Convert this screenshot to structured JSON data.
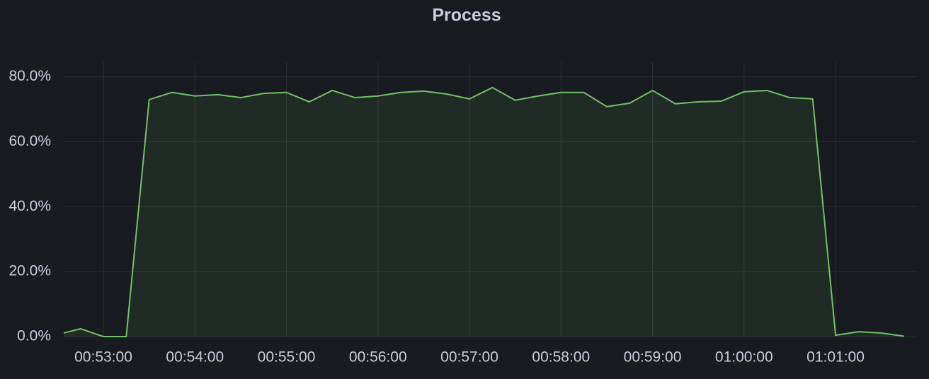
{
  "chart_data": {
    "type": "line",
    "title": "Process",
    "x": [
      "00:52:34",
      "00:52:45",
      "00:53:00",
      "00:53:15",
      "00:53:30",
      "00:53:45",
      "00:54:00",
      "00:54:15",
      "00:54:30",
      "00:54:45",
      "00:55:00",
      "00:55:15",
      "00:55:30",
      "00:55:45",
      "00:56:00",
      "00:56:15",
      "00:56:30",
      "00:56:45",
      "00:57:00",
      "00:57:15",
      "00:57:30",
      "00:57:45",
      "00:58:00",
      "00:58:15",
      "00:58:30",
      "00:58:45",
      "00:59:00",
      "00:59:15",
      "00:59:30",
      "00:59:45",
      "01:00:00",
      "01:00:15",
      "01:00:30",
      "01:00:45",
      "01:01:00",
      "01:01:15",
      "01:01:30",
      "01:01:45"
    ],
    "values": [
      1.1,
      2.4,
      0,
      0,
      73.0,
      75.2,
      74.1,
      74.5,
      73.6,
      74.9,
      75.2,
      72.3,
      75.8,
      73.6,
      74.1,
      75.2,
      75.6,
      74.7,
      73.2,
      76.7,
      72.8,
      74.1,
      75.2,
      75.2,
      70.8,
      71.9,
      75.8,
      71.7,
      72.3,
      72.5,
      75.4,
      75.8,
      73.6,
      73.2,
      0.4,
      1.5,
      1.1,
      0.1
    ],
    "color": "#73bf69",
    "xlim": [
      "00:52:34",
      "01:01:45"
    ],
    "xticks": [
      "00:53:00",
      "00:54:00",
      "00:55:00",
      "00:56:00",
      "00:57:00",
      "00:58:00",
      "00:59:00",
      "01:00:00",
      "01:01:00"
    ],
    "ylim": [
      0,
      84.5
    ],
    "yticks": [
      {
        "value": 0,
        "label": "0.0%"
      },
      {
        "value": 20,
        "label": "20.0%"
      },
      {
        "value": 40,
        "label": "40.0%"
      },
      {
        "value": 60,
        "label": "60.0%"
      },
      {
        "value": 80,
        "label": "80.0%"
      }
    ],
    "grid": true
  }
}
